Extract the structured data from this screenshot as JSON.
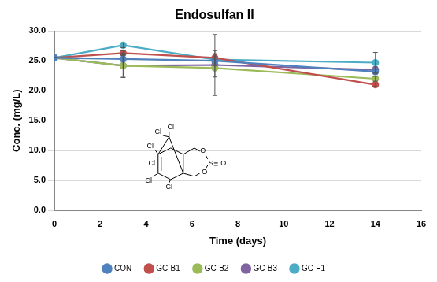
{
  "chart_data": {
    "type": "line",
    "title": "Endosulfan II",
    "x_label": "Time (days)",
    "y_label": "Conc. (mg/L)",
    "x": [
      0,
      3,
      7,
      14
    ],
    "series": [
      {
        "name": "CON",
        "color": "#4f81bd",
        "values": [
          25.5,
          25.3,
          25.0,
          23.2
        ],
        "errors": [
          0,
          1.0,
          0.8,
          0.4
        ]
      },
      {
        "name": "GC-B1",
        "color": "#c0504d",
        "values": [
          25.5,
          26.3,
          25.5,
          21.0
        ],
        "errors": [
          0,
          0.4,
          1.2,
          0.3
        ]
      },
      {
        "name": "GC-B2",
        "color": "#9bbb59",
        "values": [
          25.5,
          24.2,
          23.8,
          22.0
        ],
        "errors": [
          0,
          2.0,
          1.5,
          0.4
        ]
      },
      {
        "name": "GC-B3",
        "color": "#8064a2",
        "values": [
          25.5,
          24.2,
          24.3,
          23.5
        ],
        "errors": [
          0,
          1.8,
          5.1,
          0.5
        ]
      },
      {
        "name": "GC-F1",
        "color": "#4bacc6",
        "values": [
          25.5,
          27.6,
          25.2,
          24.7
        ],
        "errors": [
          0,
          0.4,
          1.0,
          1.7
        ]
      }
    ],
    "xlim": [
      0,
      16
    ],
    "xticks": [
      0,
      2,
      4,
      6,
      8,
      10,
      12,
      14,
      16
    ],
    "ylim": [
      0,
      30
    ],
    "yticks": [
      {
        "value": 0,
        "label": "0.0"
      },
      {
        "value": 5,
        "label": "5.0"
      },
      {
        "value": 10,
        "label": "10.0"
      },
      {
        "value": 15,
        "label": "15.0"
      },
      {
        "value": 20,
        "label": "20.0"
      },
      {
        "value": 25,
        "label": "25.0"
      },
      {
        "value": 30,
        "label": "30.0"
      }
    ],
    "grid": "y",
    "legend": "bottom",
    "marker": "circle",
    "annotations": [
      "Cl",
      "Cl",
      "Cl",
      "Cl",
      "Cl",
      "Cl",
      "O",
      "S",
      "O",
      "O"
    ]
  }
}
